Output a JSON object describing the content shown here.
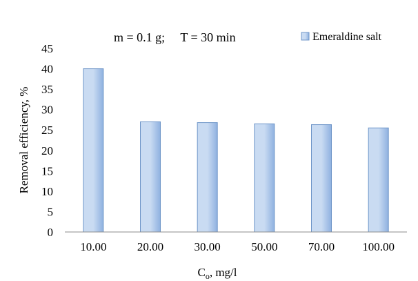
{
  "chart_data": {
    "type": "bar",
    "annotation": "m = 0.1 g;     T = 30 min",
    "categories": [
      "10.00",
      "20.00",
      "30.00",
      "50.00",
      "70.00",
      "100.00"
    ],
    "series": [
      {
        "name": "Emeraldine salt",
        "values": [
          40.0,
          27.0,
          26.8,
          26.5,
          26.3,
          25.5
        ]
      }
    ],
    "ylabel": "Removal efficiency, %",
    "xlabel_main": "C",
    "xlabel_sub": "o",
    "xlabel_rest": ", mg/l",
    "ylim": [
      0,
      45
    ],
    "yticks": [
      "0",
      "5",
      "10",
      "15",
      "20",
      "25",
      "30",
      "35",
      "40",
      "45"
    ],
    "grid": false,
    "legend_position": "top-right",
    "colors": {
      "bar_light": "#c9dbf2",
      "bar_dark": "#8fb1e0",
      "bar_stroke": "#6e95c8",
      "axis": "#8c8c8c",
      "text": "#000000"
    }
  }
}
